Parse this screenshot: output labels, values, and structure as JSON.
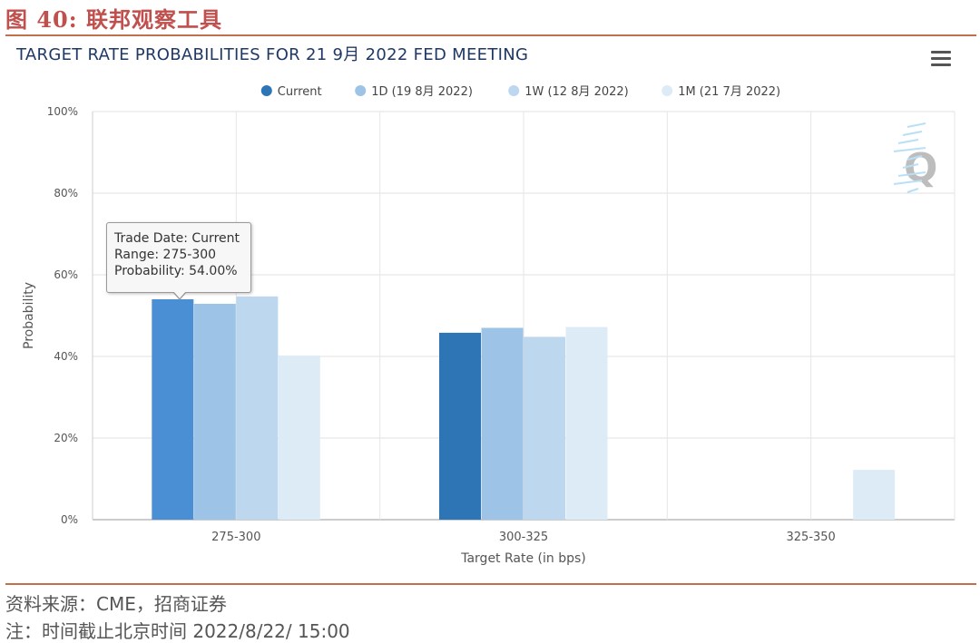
{
  "figure": {
    "title": "图 40:  联邦观察工具",
    "source": "资料来源：CME，招商证券",
    "note": "注：时间截止北京时间 2022/8/22/ 15:00"
  },
  "chart": {
    "menu_icon": "hamburger-menu-icon",
    "tooltip": {
      "line1": "Trade Date: Current",
      "line2": "Range: 275-300",
      "line3": "Probability: 54.00%"
    }
  },
  "chart_data": {
    "type": "bar",
    "title": "TARGET RATE PROBABILITIES FOR 21 9月 2022 FED MEETING",
    "xlabel": "Target Rate (in bps)",
    "ylabel": "Probability",
    "ylim": [
      0,
      100
    ],
    "yticks": [
      "0%",
      "20%",
      "40%",
      "60%",
      "80%",
      "100%"
    ],
    "categories": [
      "275-300",
      "300-325",
      "325-350"
    ],
    "legend_position": "top-center",
    "grid": true,
    "series": [
      {
        "name": "Current",
        "color": "#2e75b6",
        "values": [
          54.0,
          45.8,
          0
        ]
      },
      {
        "name": "1D (19 8月 2022)",
        "color": "#9dc3e6",
        "values": [
          52.9,
          47.0,
          0
        ]
      },
      {
        "name": "1W (12 8月 2022)",
        "color": "#bdd7ee",
        "values": [
          54.7,
          44.8,
          0
        ]
      },
      {
        "name": "1M (21 7月 2022)",
        "color": "#ddebf7",
        "values": [
          40.2,
          47.2,
          12.2
        ]
      }
    ],
    "highlight_color": "#4a8fd4"
  }
}
